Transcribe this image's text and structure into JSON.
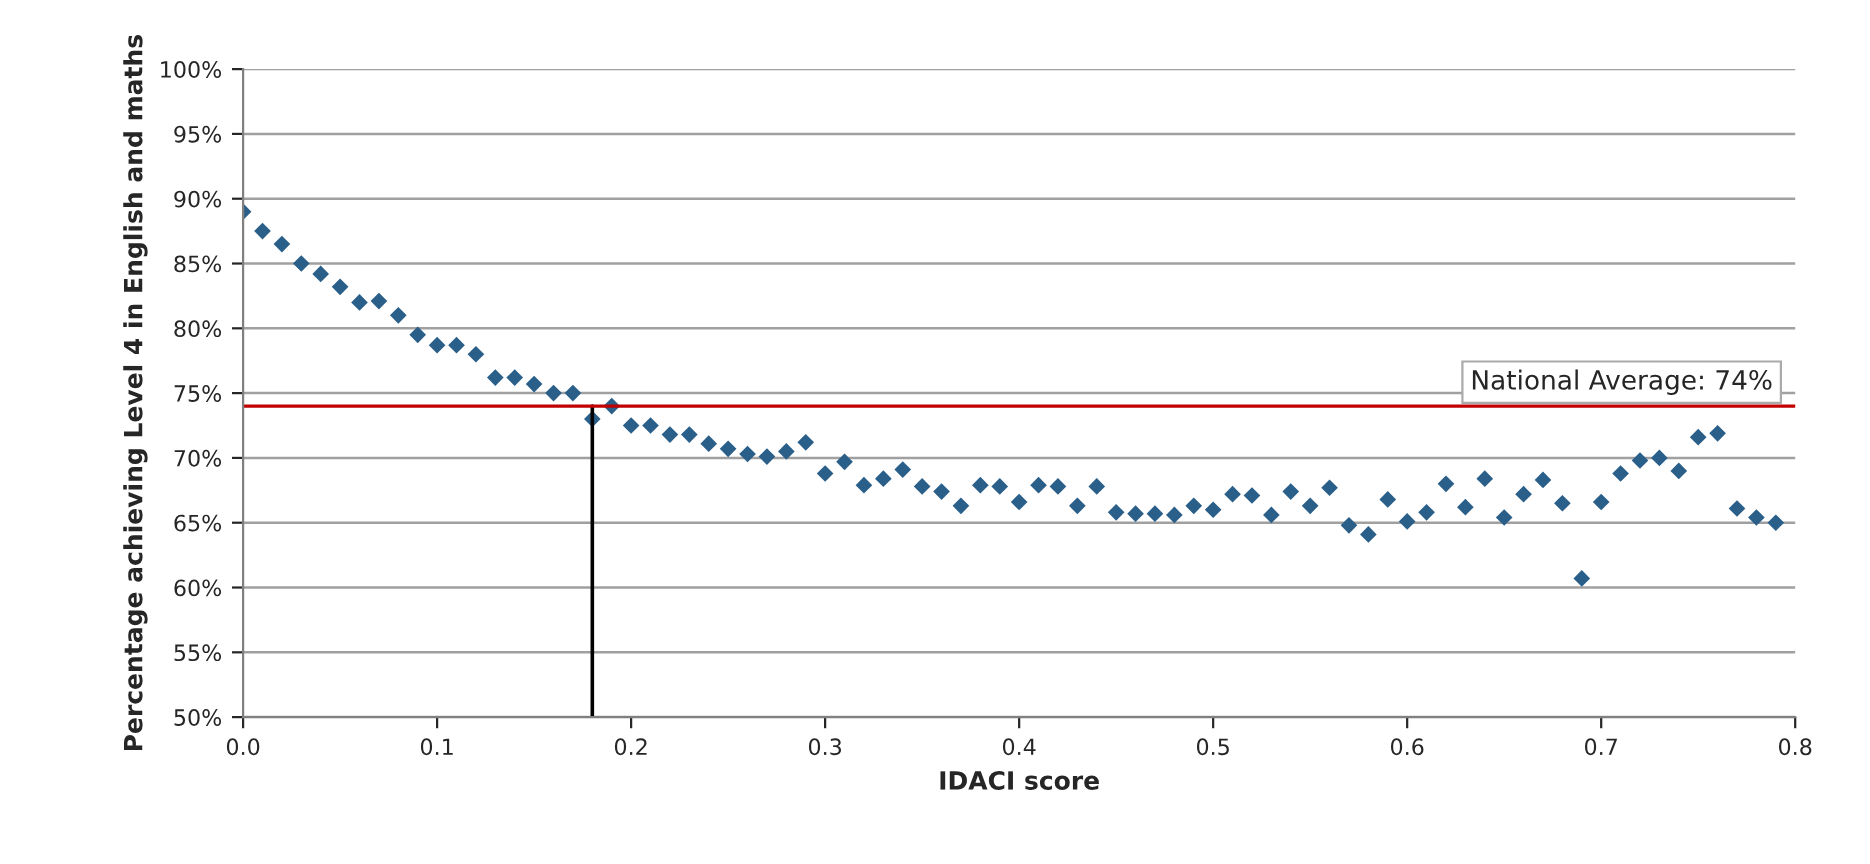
{
  "chart_data": {
    "type": "scatter",
    "xlabel": "IDACI score",
    "ylabel": "Percentage achieving Level 4 in English and maths",
    "x": [
      0.0,
      0.01,
      0.02,
      0.03,
      0.04,
      0.05,
      0.06,
      0.07,
      0.08,
      0.09,
      0.1,
      0.11,
      0.12,
      0.13,
      0.14,
      0.15,
      0.16,
      0.17,
      0.18,
      0.19,
      0.2,
      0.21,
      0.22,
      0.23,
      0.24,
      0.25,
      0.26,
      0.27,
      0.28,
      0.29,
      0.3,
      0.31,
      0.32,
      0.33,
      0.34,
      0.35,
      0.36,
      0.37,
      0.38,
      0.39,
      0.4,
      0.41,
      0.42,
      0.43,
      0.44,
      0.45,
      0.46,
      0.47,
      0.48,
      0.49,
      0.5,
      0.51,
      0.52,
      0.53,
      0.54,
      0.55,
      0.56,
      0.57,
      0.58,
      0.59,
      0.6,
      0.61,
      0.62,
      0.63,
      0.64,
      0.65,
      0.66,
      0.67,
      0.68,
      0.69,
      0.7,
      0.71,
      0.72,
      0.73,
      0.74,
      0.75,
      0.76,
      0.77,
      0.78,
      0.79
    ],
    "series": [
      {
        "color": "#2a5f8a",
        "marker": "diamond",
        "values": [
          89,
          87.5,
          86.5,
          85,
          84.2,
          83.2,
          82,
          82.1,
          81,
          79.5,
          78.7,
          78.7,
          78,
          76.2,
          76.2,
          75.7,
          75,
          75,
          73,
          74,
          72.5,
          72.5,
          71.8,
          71.8,
          71.1,
          70.7,
          70.3,
          70.1,
          70.5,
          71.2,
          68.8,
          69.7,
          67.9,
          68.4,
          69.1,
          67.8,
          67.4,
          66.3,
          67.9,
          67.8,
          66.6,
          67.9,
          67.8,
          66.3,
          67.8,
          65.8,
          65.7,
          65.7,
          65.6,
          66.3,
          66,
          67.2,
          67.1,
          65.6,
          67.4,
          66.3,
          67.7,
          64.8,
          64.1,
          66.8,
          65.1,
          65.8,
          68,
          66.2,
          68.4,
          65.4,
          67.2,
          68.3,
          66.5,
          60.7,
          66.6,
          68.8,
          69.8,
          70,
          69,
          71.6,
          71.9,
          66.1,
          65.4,
          65
        ]
      },
      {
        "type": "line",
        "color": "#000000",
        "x": [
          0.18,
          0.18
        ],
        "values": [
          50,
          74
        ]
      }
    ],
    "ref_lines": [
      {
        "axis": "y",
        "value": 74,
        "label": "National Average: 74%",
        "color": "#c00000"
      }
    ],
    "xlim": [
      0,
      0.8
    ],
    "xticks": [
      {
        "value": 0,
        "label": "0.0"
      },
      {
        "value": 0.1,
        "label": "0.1"
      },
      {
        "value": 0.2,
        "label": "0.2"
      },
      {
        "value": 0.3,
        "label": "0.3"
      },
      {
        "value": 0.4,
        "label": "0.4"
      },
      {
        "value": 0.5,
        "label": "0.5"
      },
      {
        "value": 0.6,
        "label": "0.6"
      },
      {
        "value": 0.7,
        "label": "0.7"
      },
      {
        "value": 0.8,
        "label": "0.8"
      }
    ],
    "ylim": [
      50,
      100
    ],
    "yticks": [
      {
        "value": 50,
        "label": "50%"
      },
      {
        "value": 55,
        "label": "55%"
      },
      {
        "value": 60,
        "label": "60%"
      },
      {
        "value": 65,
        "label": "65%"
      },
      {
        "value": 70,
        "label": "70%"
      },
      {
        "value": 75,
        "label": "75%"
      },
      {
        "value": 80,
        "label": "80%"
      },
      {
        "value": 85,
        "label": "85%"
      },
      {
        "value": 90,
        "label": "90%"
      },
      {
        "value": 95,
        "label": "95%"
      },
      {
        "value": 100,
        "label": "100%"
      }
    ],
    "grid": "y",
    "legend": false
  }
}
